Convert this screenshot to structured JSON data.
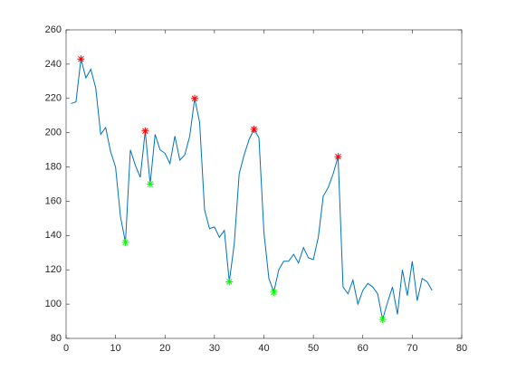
{
  "chart_data": {
    "type": "line",
    "x": [
      1,
      2,
      3,
      4,
      5,
      6,
      7,
      8,
      9,
      10,
      11,
      12,
      13,
      14,
      15,
      16,
      17,
      18,
      19,
      20,
      21,
      22,
      23,
      24,
      25,
      26,
      27,
      28,
      29,
      30,
      31,
      32,
      33,
      34,
      35,
      36,
      37,
      38,
      39,
      40,
      41,
      42,
      43,
      44,
      45,
      46,
      47,
      48,
      49,
      50,
      51,
      52,
      53,
      54,
      55,
      56,
      57,
      58,
      59,
      60,
      61,
      62,
      63,
      64,
      65,
      66,
      67,
      68,
      69,
      70,
      71,
      72,
      73,
      74
    ],
    "series": [
      {
        "color": "#0072bd",
        "linestyle": "-",
        "values": [
          217,
          218,
          243,
          232,
          237,
          226,
          199,
          203,
          189,
          180,
          151,
          136,
          190,
          181,
          174,
          201,
          170,
          199,
          190,
          188,
          182,
          198,
          184,
          187,
          198,
          220,
          206,
          155,
          144,
          145,
          139,
          143,
          113,
          135,
          176,
          187,
          196,
          202,
          197,
          142,
          115,
          107,
          120,
          125,
          125,
          129,
          124,
          133,
          127,
          126,
          139,
          163,
          168,
          176,
          186,
          110,
          106,
          114,
          100,
          108,
          112,
          110,
          106,
          91,
          101,
          110,
          94,
          120,
          105,
          125,
          102,
          115,
          113,
          108
        ]
      },
      {
        "color": "#ff0000",
        "linestyle": "none",
        "marker": "*",
        "x": [
          3,
          16,
          26,
          38,
          55
        ],
        "values": [
          243,
          201,
          220,
          202,
          186
        ]
      },
      {
        "color": "#00ff00",
        "linestyle": "none",
        "marker": "*",
        "x": [
          12,
          17,
          33,
          42,
          64
        ],
        "values": [
          136,
          170,
          113,
          107,
          91
        ]
      }
    ],
    "xlim": [
      0,
      80
    ],
    "xticks": [
      0,
      10,
      20,
      30,
      40,
      50,
      60,
      70,
      80
    ],
    "ylim": [
      80,
      260
    ],
    "yticks": [
      80,
      100,
      120,
      140,
      160,
      180,
      200,
      220,
      240,
      260
    ]
  }
}
